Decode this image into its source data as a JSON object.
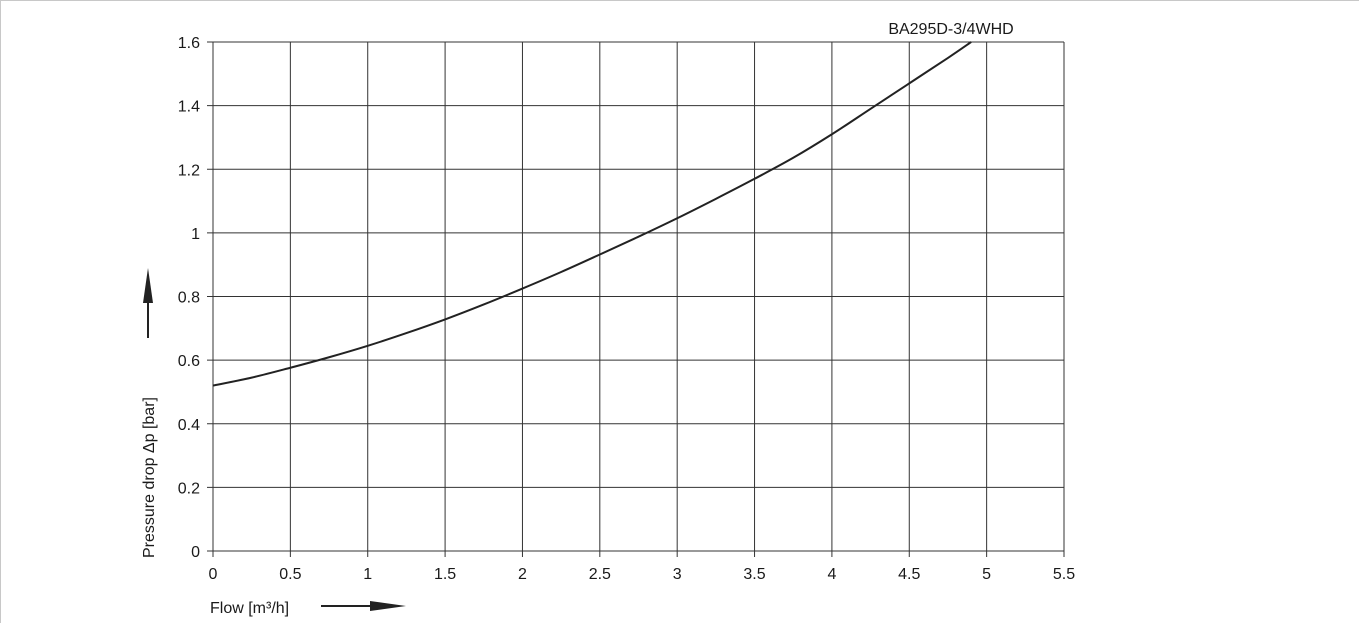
{
  "chart_data": {
    "type": "line",
    "series": [
      {
        "name": "BA295D-3/4WHD",
        "x": [
          0,
          0.25,
          0.5,
          0.75,
          1,
          1.25,
          1.5,
          1.75,
          2,
          2.25,
          2.5,
          2.75,
          3,
          3.25,
          3.5,
          3.75,
          4,
          4.25,
          4.5,
          4.75,
          4.9
        ],
        "y": [
          0.52,
          0.545,
          0.576,
          0.609,
          0.645,
          0.685,
          0.728,
          0.775,
          0.825,
          0.877,
          0.932,
          0.988,
          1.046,
          1.107,
          1.17,
          1.236,
          1.31,
          1.39,
          1.47,
          1.55,
          1.6
        ]
      }
    ],
    "xlabel": "Flow [m³/h]",
    "ylabel": "Pressure drop Δp [bar]",
    "xlim": [
      0,
      5.5
    ],
    "ylim": [
      0,
      1.6
    ],
    "xticks": [
      "0",
      "0.5",
      "1",
      "1.5",
      "2",
      "2.5",
      "3",
      "3.5",
      "4",
      "4.5",
      "5",
      "5.5"
    ],
    "yticks": [
      "0",
      "0.2",
      "0.4",
      "0.6",
      "0.8",
      "1",
      "1.2",
      "1.4",
      "1.6"
    ],
    "grid": true,
    "legend_position": "top-right",
    "line_color": "#222222",
    "grid_color": "#333333"
  }
}
